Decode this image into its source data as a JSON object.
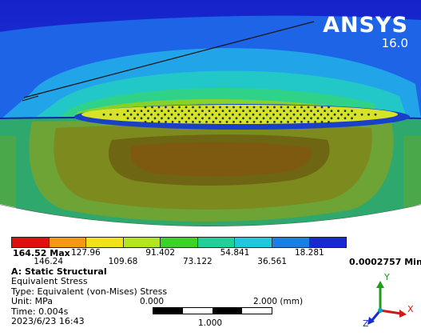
{
  "logo": {
    "brand": "ANSYS",
    "version": "16.0"
  },
  "legend": {
    "max_label": "164.52 Max",
    "min_label": "0.0002757 Min",
    "top_labels": [
      "127.96",
      "91.402",
      "54.841",
      "18.281"
    ],
    "bottom_labels": [
      "146.24",
      "109.68",
      "73.122",
      "36.561"
    ],
    "colors": [
      "#e01010",
      "#f29a12",
      "#f2e21a",
      "#b4e61e",
      "#3cd228",
      "#20d29a",
      "#20c8dc",
      "#1a7ee6",
      "#1a28d2"
    ]
  },
  "info": {
    "title": "A: Static Structural",
    "result": "Equivalent Stress",
    "type_line": "Type: Equivalent (von-Mises) Stress",
    "unit_line": "Unit: MPa",
    "time_line": "Time: 0.004s",
    "date_line": "2023/6/23 16:43"
  },
  "scale": {
    "left": "0.000",
    "right": "2.000 (mm)",
    "mid": "1.000"
  },
  "triad": {
    "y": "Y",
    "x": "X",
    "z": "Z"
  }
}
